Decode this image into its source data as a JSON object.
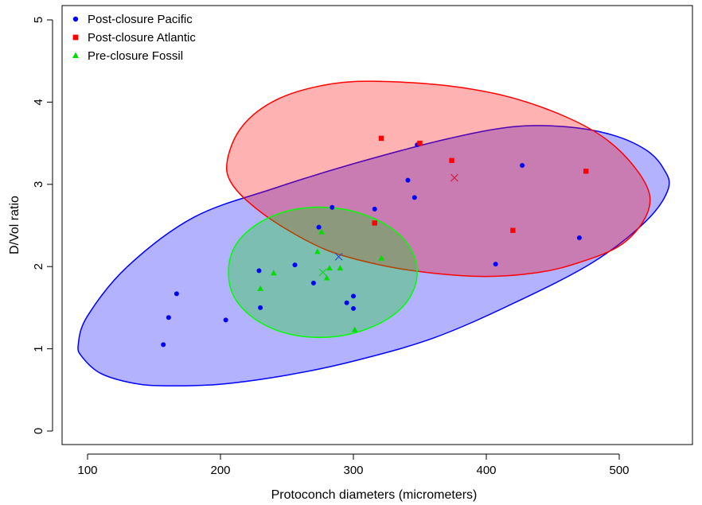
{
  "chart_data": {
    "type": "scatter",
    "title": "",
    "xlabel": "Protoconch diameters (micrometers)",
    "ylabel": "D/Vol ratio",
    "xlim": [
      80,
      550
    ],
    "ylim": [
      -0.2,
      5.1
    ],
    "xticks": [
      100,
      200,
      300,
      400,
      500
    ],
    "yticks": [
      0,
      1,
      2,
      3,
      4,
      5
    ],
    "grid": false,
    "legend_position": "top-left",
    "series": [
      {
        "name": "Post-closure Pacific",
        "marker": "circle",
        "color": "#0000FF",
        "points": [
          [
            157,
            1.05
          ],
          [
            161,
            1.38
          ],
          [
            167,
            1.67
          ],
          [
            204,
            1.35
          ],
          [
            229,
            1.95
          ],
          [
            230,
            1.5
          ],
          [
            256,
            2.02
          ],
          [
            270,
            1.8
          ],
          [
            274,
            2.48
          ],
          [
            284,
            2.72
          ],
          [
            295,
            1.56
          ],
          [
            300,
            1.64
          ],
          [
            300,
            1.49
          ],
          [
            316,
            2.7
          ],
          [
            341,
            3.05
          ],
          [
            346,
            2.84
          ],
          [
            348,
            3.48
          ],
          [
            407,
            2.03
          ],
          [
            427,
            3.23
          ],
          [
            470,
            2.35
          ]
        ]
      },
      {
        "name": "Post-closure Atlantic",
        "marker": "square",
        "color": "#FF0000",
        "points": [
          [
            316,
            2.53
          ],
          [
            321,
            3.56
          ],
          [
            350,
            3.5
          ],
          [
            374,
            3.29
          ],
          [
            420,
            2.44
          ],
          [
            475,
            3.16
          ]
        ]
      },
      {
        "name": "Pre-closure Fossil",
        "marker": "triangle",
        "color": "#00DD00",
        "points": [
          [
            230,
            1.73
          ],
          [
            240,
            1.92
          ],
          [
            273,
            2.18
          ],
          [
            276,
            2.42
          ],
          [
            280,
            1.86
          ],
          [
            282,
            1.98
          ],
          [
            290,
            1.98
          ],
          [
            301,
            1.23
          ],
          [
            321,
            2.1
          ]
        ]
      }
    ],
    "ellipses": [
      {
        "series": "Post-closure Pacific",
        "fill": "#0000FF",
        "stroke": "#0000FF",
        "center": [
          289,
          2.12
        ],
        "polygon": [
          [
            93,
            1.05
          ],
          [
            96,
            0.9
          ],
          [
            110,
            0.7
          ],
          [
            135,
            0.58
          ],
          [
            160,
            0.55
          ],
          [
            200,
            0.57
          ],
          [
            250,
            0.68
          ],
          [
            300,
            0.85
          ],
          [
            360,
            1.13
          ],
          [
            420,
            1.55
          ],
          [
            480,
            2.05
          ],
          [
            520,
            2.55
          ],
          [
            537,
            2.95
          ],
          [
            533,
            3.2
          ],
          [
            520,
            3.42
          ],
          [
            495,
            3.6
          ],
          [
            460,
            3.7
          ],
          [
            420,
            3.7
          ],
          [
            370,
            3.55
          ],
          [
            300,
            3.25
          ],
          [
            240,
            2.95
          ],
          [
            180,
            2.6
          ],
          [
            130,
            2.0
          ],
          [
            100,
            1.4
          ]
        ]
      },
      {
        "series": "Post-closure Atlantic",
        "fill": "#FF0000",
        "stroke": "#FF0000",
        "center": [
          376,
          3.08
        ],
        "polygon": [
          [
            205,
            3.28
          ],
          [
            212,
            3.6
          ],
          [
            225,
            3.85
          ],
          [
            245,
            4.05
          ],
          [
            270,
            4.18
          ],
          [
            300,
            4.25
          ],
          [
            340,
            4.24
          ],
          [
            380,
            4.18
          ],
          [
            420,
            4.05
          ],
          [
            460,
            3.82
          ],
          [
            490,
            3.55
          ],
          [
            512,
            3.2
          ],
          [
            523,
            2.86
          ],
          [
            518,
            2.55
          ],
          [
            500,
            2.25
          ],
          [
            470,
            2.05
          ],
          [
            440,
            1.93
          ],
          [
            400,
            1.88
          ],
          [
            360,
            1.92
          ],
          [
            320,
            2.02
          ],
          [
            280,
            2.2
          ],
          [
            245,
            2.5
          ],
          [
            220,
            2.8
          ],
          [
            207,
            3.05
          ]
        ]
      },
      {
        "series": "Pre-closure Fossil",
        "fill": "#00DD00",
        "stroke": "#00FF00",
        "center": [
          277,
          1.93
        ],
        "polygon": [
          [
            206,
            1.93
          ],
          [
            210,
            2.22
          ],
          [
            222,
            2.45
          ],
          [
            240,
            2.62
          ],
          [
            262,
            2.71
          ],
          [
            287,
            2.71
          ],
          [
            310,
            2.62
          ],
          [
            330,
            2.45
          ],
          [
            343,
            2.22
          ],
          [
            348,
            1.93
          ],
          [
            343,
            1.64
          ],
          [
            330,
            1.41
          ],
          [
            310,
            1.24
          ],
          [
            287,
            1.15
          ],
          [
            262,
            1.15
          ],
          [
            240,
            1.24
          ],
          [
            222,
            1.41
          ],
          [
            210,
            1.64
          ]
        ]
      }
    ],
    "centroids": [
      {
        "series": "Post-closure Pacific",
        "color": "#3355CC",
        "x": 289,
        "y": 2.12
      },
      {
        "series": "Post-closure Atlantic",
        "color": "#CC2244",
        "x": 376,
        "y": 3.08
      },
      {
        "series": "Pre-closure Fossil",
        "color": "#22CC33",
        "x": 277,
        "y": 1.93
      }
    ]
  }
}
